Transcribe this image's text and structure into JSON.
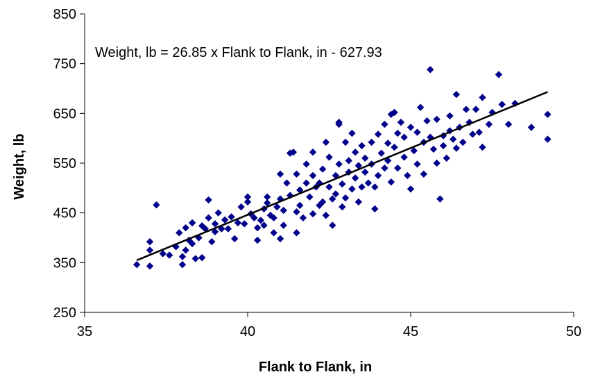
{
  "chart_data": {
    "type": "scatter",
    "title": "",
    "xlabel": "Flank to Flank, in",
    "ylabel": "Weight, lb",
    "xlim": [
      35,
      50
    ],
    "ylim": [
      250,
      850
    ],
    "xticks": [
      "35",
      "40",
      "45",
      "50"
    ],
    "yticks": [
      "250",
      "350",
      "450",
      "550",
      "650",
      "750",
      "850"
    ],
    "grid": false,
    "legend": "none",
    "marker_color": "#00008B",
    "line_color": "#000000",
    "annotation": "Weight, lb = 26.85 x Flank to Flank, in - 627.93",
    "trendline": {
      "slope": 26.85,
      "intercept": -627.93,
      "x_range": [
        36.6,
        49.2
      ]
    },
    "series": [
      {
        "points": [
          [
            36.6,
            346
          ],
          [
            37.0,
            343
          ],
          [
            37.0,
            375
          ],
          [
            37.0,
            392
          ],
          [
            37.2,
            466
          ],
          [
            37.4,
            368
          ],
          [
            37.6,
            365
          ],
          [
            37.8,
            382
          ],
          [
            37.9,
            410
          ],
          [
            38.0,
            346
          ],
          [
            38.0,
            362
          ],
          [
            38.1,
            375
          ],
          [
            38.1,
            420
          ],
          [
            38.2,
            395
          ],
          [
            38.3,
            388
          ],
          [
            38.3,
            430
          ],
          [
            38.4,
            358
          ],
          [
            38.5,
            400
          ],
          [
            38.6,
            360
          ],
          [
            38.6,
            424
          ],
          [
            38.7,
            418
          ],
          [
            38.8,
            440
          ],
          [
            38.8,
            476
          ],
          [
            38.9,
            392
          ],
          [
            39.0,
            412
          ],
          [
            39.0,
            428
          ],
          [
            39.1,
            450
          ],
          [
            39.2,
            418
          ],
          [
            39.3,
            436
          ],
          [
            39.4,
            418
          ],
          [
            39.5,
            442
          ],
          [
            39.6,
            398
          ],
          [
            39.7,
            430
          ],
          [
            39.8,
            462
          ],
          [
            39.9,
            428
          ],
          [
            40.0,
            472
          ],
          [
            40.0,
            482
          ],
          [
            40.1,
            448
          ],
          [
            40.2,
            440
          ],
          [
            40.3,
            420
          ],
          [
            40.3,
            395
          ],
          [
            40.4,
            435
          ],
          [
            40.5,
            425
          ],
          [
            40.5,
            458
          ],
          [
            40.6,
            470
          ],
          [
            40.6,
            482
          ],
          [
            40.7,
            445
          ],
          [
            40.8,
            410
          ],
          [
            40.8,
            440
          ],
          [
            40.9,
            462
          ],
          [
            41.0,
            398
          ],
          [
            41.0,
            478
          ],
          [
            41.0,
            528
          ],
          [
            41.1,
            425
          ],
          [
            41.1,
            455
          ],
          [
            41.2,
            510
          ],
          [
            41.3,
            570
          ],
          [
            41.3,
            485
          ],
          [
            41.4,
            572
          ],
          [
            41.5,
            410
          ],
          [
            41.5,
            452
          ],
          [
            41.5,
            528
          ],
          [
            41.6,
            496
          ],
          [
            41.6,
            465
          ],
          [
            41.7,
            440
          ],
          [
            41.8,
            510
          ],
          [
            41.8,
            548
          ],
          [
            41.9,
            482
          ],
          [
            42.0,
            448
          ],
          [
            42.0,
            572
          ],
          [
            42.0,
            525
          ],
          [
            42.1,
            502
          ],
          [
            42.2,
            465
          ],
          [
            42.2,
            510
          ],
          [
            42.3,
            538
          ],
          [
            42.3,
            472
          ],
          [
            42.4,
            592
          ],
          [
            42.4,
            445
          ],
          [
            42.5,
            502
          ],
          [
            42.5,
            562
          ],
          [
            42.6,
            478
          ],
          [
            42.6,
            425
          ],
          [
            42.7,
            525
          ],
          [
            42.7,
            488
          ],
          [
            42.8,
            632
          ],
          [
            42.8,
            628
          ],
          [
            42.8,
            548
          ],
          [
            42.9,
            462
          ],
          [
            42.9,
            508
          ],
          [
            43.0,
            480
          ],
          [
            43.0,
            592
          ],
          [
            43.1,
            532
          ],
          [
            43.1,
            555
          ],
          [
            43.2,
            498
          ],
          [
            43.2,
            610
          ],
          [
            43.3,
            520
          ],
          [
            43.3,
            572
          ],
          [
            43.4,
            472
          ],
          [
            43.4,
            545
          ],
          [
            43.5,
            502
          ],
          [
            43.5,
            585
          ],
          [
            43.6,
            532
          ],
          [
            43.6,
            560
          ],
          [
            43.7,
            510
          ],
          [
            43.8,
            592
          ],
          [
            43.8,
            548
          ],
          [
            43.9,
            458
          ],
          [
            43.9,
            502
          ],
          [
            44.0,
            525
          ],
          [
            44.0,
            608
          ],
          [
            44.1,
            570
          ],
          [
            44.2,
            540
          ],
          [
            44.2,
            628
          ],
          [
            44.3,
            590
          ],
          [
            44.3,
            555
          ],
          [
            44.4,
            648
          ],
          [
            44.4,
            512
          ],
          [
            44.5,
            652
          ],
          [
            44.5,
            582
          ],
          [
            44.6,
            610
          ],
          [
            44.6,
            540
          ],
          [
            44.7,
            632
          ],
          [
            44.8,
            562
          ],
          [
            44.8,
            602
          ],
          [
            44.9,
            525
          ],
          [
            45.0,
            622
          ],
          [
            45.0,
            498
          ],
          [
            45.1,
            575
          ],
          [
            45.2,
            612
          ],
          [
            45.2,
            548
          ],
          [
            45.3,
            662
          ],
          [
            45.4,
            592
          ],
          [
            45.4,
            528
          ],
          [
            45.5,
            635
          ],
          [
            45.6,
            738
          ],
          [
            45.6,
            602
          ],
          [
            45.7,
            578
          ],
          [
            45.8,
            638
          ],
          [
            45.8,
            550
          ],
          [
            45.9,
            478
          ],
          [
            46.0,
            605
          ],
          [
            46.0,
            585
          ],
          [
            46.1,
            560
          ],
          [
            46.2,
            645
          ],
          [
            46.2,
            615
          ],
          [
            46.3,
            598
          ],
          [
            46.4,
            688
          ],
          [
            46.4,
            580
          ],
          [
            46.5,
            622
          ],
          [
            46.6,
            592
          ],
          [
            46.7,
            658
          ],
          [
            46.8,
            632
          ],
          [
            46.9,
            608
          ],
          [
            47.0,
            658
          ],
          [
            47.1,
            612
          ],
          [
            47.2,
            682
          ],
          [
            47.2,
            582
          ],
          [
            47.4,
            628
          ],
          [
            47.5,
            652
          ],
          [
            47.7,
            728
          ],
          [
            47.8,
            668
          ],
          [
            48.0,
            628
          ],
          [
            48.2,
            670
          ],
          [
            48.7,
            622
          ],
          [
            49.2,
            648
          ],
          [
            49.2,
            598
          ]
        ]
      }
    ]
  }
}
